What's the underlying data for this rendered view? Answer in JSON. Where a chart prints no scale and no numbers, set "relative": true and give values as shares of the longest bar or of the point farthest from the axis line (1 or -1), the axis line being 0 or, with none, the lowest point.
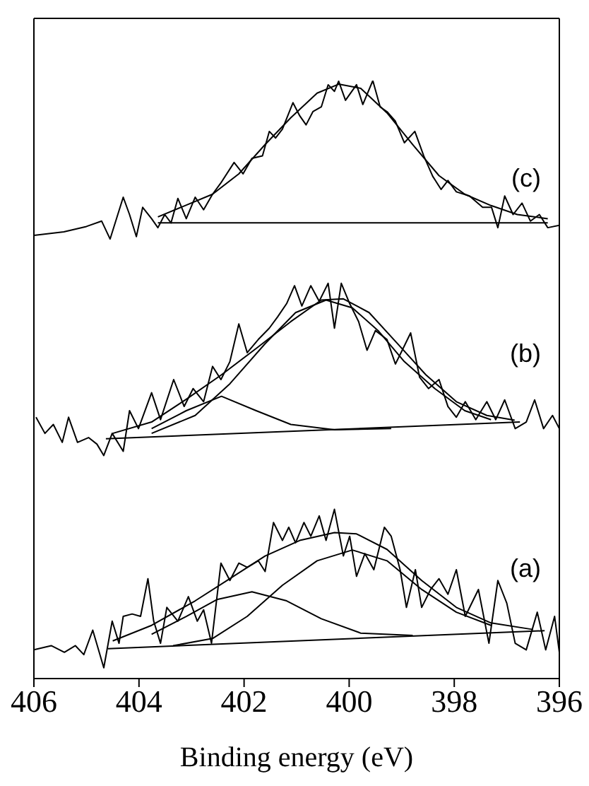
{
  "chart_data": {
    "type": "line",
    "relative": true,
    "xlabel": "Binding energy (eV)",
    "xlim": [
      406,
      396
    ],
    "xticks": [
      406,
      404,
      402,
      400,
      398,
      396
    ],
    "marker": "none",
    "line_style": "solid",
    "annotations": [
      "(c)",
      "(b)",
      "(a)"
    ],
    "series": [
      {
        "color": "#000000",
        "x": [
          406,
          405.43,
          405.0,
          404.71,
          404.55,
          404.3,
          404.18,
          404.05,
          403.93,
          403.76,
          403.64,
          403.51,
          403.39,
          403.26,
          403.1,
          402.93,
          402.77,
          402.6,
          402.44,
          402.19,
          402.02,
          401.85,
          401.65,
          401.52,
          401.4,
          401.27,
          401.07,
          400.94,
          400.82,
          400.69,
          400.53,
          400.4,
          400.28,
          400.2,
          400.07,
          399.86,
          399.74,
          399.55,
          399.41,
          399.28,
          399.12,
          398.95,
          398.75,
          398.58,
          398.41,
          398.25,
          398.12,
          397.96,
          397.71,
          397.46,
          397.29,
          397.17,
          397.04,
          396.88,
          396.71,
          396.55,
          396.38,
          396.22,
          396.0
        ],
        "values": [
          0.741,
          0.747,
          0.756,
          0.765,
          0.735,
          0.805,
          0.776,
          0.739,
          0.788,
          0.769,
          0.754,
          0.776,
          0.762,
          0.803,
          0.769,
          0.805,
          0.784,
          0.81,
          0.829,
          0.863,
          0.844,
          0.87,
          0.874,
          0.915,
          0.904,
          0.919,
          0.963,
          0.941,
          0.926,
          0.948,
          0.956,
          0.993,
          0.982,
          0.999,
          0.967,
          0.993,
          0.96,
          1.0,
          0.956,
          0.948,
          0.932,
          0.896,
          0.915,
          0.874,
          0.84,
          0.818,
          0.833,
          0.814,
          0.807,
          0.788,
          0.788,
          0.754,
          0.807,
          0.776,
          0.795,
          0.765,
          0.776,
          0.754,
          0.758
        ]
      },
      {
        "color": "#000000",
        "x": [
          403.64,
          396.22
        ],
        "values": [
          0.762,
          0.762
        ]
      },
      {
        "color": "#000000",
        "x": [
          403.64,
          402.6,
          402.1,
          401.6,
          401.11,
          400.61,
          400.2,
          399.78,
          399.28,
          398.79,
          398.29,
          397.8,
          397.3,
          396.8,
          396.22
        ],
        "values": [
          0.772,
          0.81,
          0.844,
          0.893,
          0.938,
          0.979,
          0.994,
          0.987,
          0.946,
          0.893,
          0.841,
          0.81,
          0.791,
          0.776,
          0.769
        ]
      },
      {
        "color": "#000000",
        "x": [
          405.96,
          405.79,
          405.63,
          405.46,
          405.34,
          405.17,
          404.96,
          404.8,
          404.67,
          404.51,
          404.3,
          404.18,
          404.01,
          403.76,
          403.59,
          403.34,
          403.14,
          402.97,
          402.77,
          402.6,
          402.44,
          402.27,
          402.1,
          401.94,
          401.73,
          401.52,
          401.36,
          401.19,
          401.04,
          400.9,
          400.73,
          400.57,
          400.4,
          400.28,
          400.15,
          399.99,
          399.82,
          399.66,
          399.5,
          399.28,
          399.12,
          398.99,
          398.83,
          398.66,
          398.49,
          398.29,
          398.12,
          397.96,
          397.79,
          397.59,
          397.38,
          397.21,
          397.04,
          396.84,
          396.63,
          396.47,
          396.3,
          396.13,
          396.0
        ],
        "values": [
          0.437,
          0.41,
          0.425,
          0.395,
          0.437,
          0.395,
          0.403,
          0.392,
          0.373,
          0.41,
          0.38,
          0.448,
          0.418,
          0.478,
          0.433,
          0.5,
          0.455,
          0.485,
          0.463,
          0.522,
          0.5,
          0.53,
          0.593,
          0.545,
          0.567,
          0.586,
          0.605,
          0.627,
          0.657,
          0.623,
          0.657,
          0.631,
          0.661,
          0.586,
          0.661,
          0.627,
          0.597,
          0.549,
          0.582,
          0.567,
          0.526,
          0.549,
          0.578,
          0.504,
          0.485,
          0.5,
          0.455,
          0.437,
          0.463,
          0.433,
          0.463,
          0.433,
          0.466,
          0.418,
          0.429,
          0.466,
          0.418,
          0.44,
          0.418
        ]
      },
      {
        "color": "#000000",
        "x": [
          404.63,
          396.75
        ],
        "values": [
          0.401,
          0.429
        ]
      },
      {
        "color": "#000000",
        "x": [
          403.76,
          403.1,
          402.43,
          401.77,
          401.11,
          400.28,
          399.2
        ],
        "values": [
          0.418,
          0.448,
          0.472,
          0.448,
          0.425,
          0.416,
          0.418
        ]
      },
      {
        "color": "#000000",
        "x": [
          403.76,
          402.93,
          402.27,
          401.6,
          401.02,
          400.44,
          399.94,
          399.45,
          398.95,
          398.37,
          397.8,
          397.3
        ],
        "values": [
          0.41,
          0.44,
          0.493,
          0.56,
          0.612,
          0.633,
          0.62,
          0.582,
          0.53,
          0.485,
          0.448,
          0.433
        ]
      },
      {
        "color": "#000000",
        "x": [
          404.5,
          403.76,
          403.1,
          402.43,
          401.77,
          401.11,
          400.53,
          400.11,
          399.62,
          399.12,
          398.54,
          397.96,
          397.38,
          396.85
        ],
        "values": [
          0.41,
          0.429,
          0.467,
          0.508,
          0.552,
          0.597,
          0.633,
          0.635,
          0.612,
          0.564,
          0.508,
          0.463,
          0.44,
          0.432
        ]
      },
      {
        "color": "#000000",
        "x": [
          406.0,
          405.67,
          405.42,
          405.21,
          405.05,
          404.88,
          404.67,
          404.51,
          404.38,
          404.3,
          404.13,
          403.97,
          403.83,
          403.72,
          403.59,
          403.47,
          403.26,
          403.06,
          402.89,
          402.77,
          402.62,
          402.44,
          402.27,
          402.1,
          401.94,
          401.73,
          401.6,
          401.44,
          401.27,
          401.15,
          401.02,
          400.86,
          400.73,
          400.57,
          400.44,
          400.28,
          400.11,
          399.99,
          399.86,
          399.7,
          399.53,
          399.33,
          399.2,
          399.03,
          398.91,
          398.74,
          398.62,
          398.45,
          398.29,
          398.12,
          397.96,
          397.79,
          397.54,
          397.34,
          397.17,
          397.0,
          396.84,
          396.63,
          396.42,
          396.26,
          396.09,
          396.0
        ],
        "values": [
          0.048,
          0.055,
          0.044,
          0.055,
          0.04,
          0.081,
          0.018,
          0.096,
          0.059,
          0.104,
          0.108,
          0.104,
          0.167,
          0.096,
          0.059,
          0.119,
          0.096,
          0.137,
          0.096,
          0.115,
          0.059,
          0.193,
          0.164,
          0.193,
          0.186,
          0.197,
          0.179,
          0.261,
          0.231,
          0.253,
          0.227,
          0.261,
          0.238,
          0.272,
          0.231,
          0.283,
          0.205,
          0.238,
          0.171,
          0.209,
          0.182,
          0.253,
          0.238,
          0.182,
          0.119,
          0.182,
          0.119,
          0.149,
          0.167,
          0.141,
          0.182,
          0.104,
          0.149,
          0.059,
          0.164,
          0.126,
          0.059,
          0.048,
          0.111,
          0.048,
          0.104,
          0.044
        ]
      },
      {
        "color": "#000000",
        "x": [
          404.59,
          396.28
        ],
        "values": [
          0.05,
          0.08
        ]
      },
      {
        "color": "#000000",
        "x": [
          403.76,
          403.1,
          402.52,
          401.85,
          401.19,
          400.53,
          399.78,
          398.79
        ],
        "values": [
          0.074,
          0.104,
          0.132,
          0.145,
          0.13,
          0.1,
          0.076,
          0.072
        ]
      },
      {
        "color": "#000000",
        "x": [
          403.35,
          402.6,
          401.94,
          401.27,
          400.61,
          399.94,
          399.28,
          398.62,
          397.96,
          397.3
        ],
        "values": [
          0.055,
          0.067,
          0.104,
          0.156,
          0.197,
          0.215,
          0.197,
          0.149,
          0.111,
          0.089
        ]
      },
      {
        "color": "#000000",
        "x": [
          404.5,
          403.76,
          402.93,
          402.27,
          401.6,
          400.94,
          400.28,
          399.86,
          399.28,
          398.62,
          397.96,
          397.3,
          396.5
        ],
        "values": [
          0.063,
          0.089,
          0.13,
          0.167,
          0.205,
          0.231,
          0.244,
          0.242,
          0.216,
          0.164,
          0.119,
          0.093,
          0.082
        ]
      }
    ]
  }
}
